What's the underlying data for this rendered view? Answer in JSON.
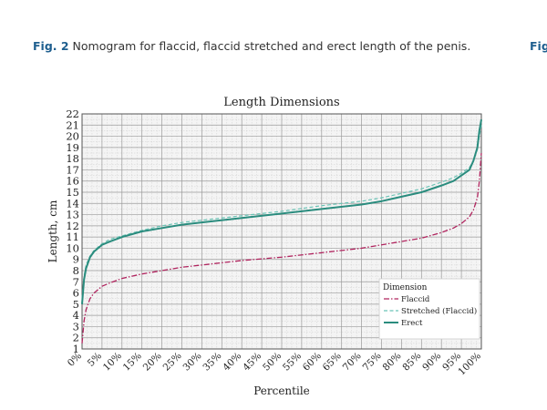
{
  "figure": {
    "label": "Fig. 2",
    "caption": " Nomogram for flaccid, flaccid stretched and erect length of the penis.",
    "next_label": "Fig"
  },
  "colors": {
    "background": "#ffffff",
    "plot_background": "#f4f4f4",
    "grid_major": "#9a9a9a",
    "grid_minor": "#d0d0d0",
    "flaccid": "#b0245e",
    "stretched": "#6bc4b6",
    "erect": "#2a8c7e",
    "caption_label": "#1f5f8f"
  },
  "chart_data": {
    "type": "line",
    "title": "Length Dimensions",
    "xlabel": "Percentile",
    "ylabel": "Length, cm",
    "xlim": [
      0,
      100
    ],
    "ylim": [
      1,
      22
    ],
    "grid": true,
    "x_ticks": [
      "0%",
      "5%",
      "10%",
      "15%",
      "20%",
      "25%",
      "30%",
      "35%",
      "40%",
      "45%",
      "50%",
      "55%",
      "60%",
      "65%",
      "70%",
      "75%",
      "80%",
      "85%",
      "90%",
      "95%",
      "100%"
    ],
    "y_ticks": [
      "1",
      "2",
      "3",
      "4",
      "5",
      "6",
      "7",
      "8",
      "9",
      "10",
      "11",
      "12",
      "13",
      "14",
      "15",
      "16",
      "17",
      "18",
      "19",
      "20",
      "21",
      "22"
    ],
    "legend": {
      "title": "Dimension",
      "position": "bottom-right"
    },
    "x": [
      0,
      0.5,
      1,
      2,
      3,
      5,
      7,
      10,
      15,
      20,
      25,
      30,
      40,
      50,
      60,
      70,
      75,
      80,
      85,
      90,
      93,
      95,
      97,
      98,
      99,
      99.5,
      100
    ],
    "series": [
      {
        "name": "Flaccid",
        "style": "dashdot",
        "values": [
          1.5,
          3.5,
          4.5,
          5.5,
          6.0,
          6.6,
          6.9,
          7.3,
          7.7,
          8.0,
          8.3,
          8.5,
          8.9,
          9.2,
          9.6,
          10.0,
          10.3,
          10.6,
          10.9,
          11.4,
          11.8,
          12.2,
          12.8,
          13.4,
          14.5,
          16.0,
          18.5
        ]
      },
      {
        "name": "Stretched (Flaccid)",
        "style": "dashed",
        "values": [
          5.5,
          7.5,
          8.5,
          9.3,
          9.8,
          10.4,
          10.8,
          11.1,
          11.6,
          12.0,
          12.3,
          12.5,
          12.9,
          13.3,
          13.8,
          14.2,
          14.5,
          14.9,
          15.3,
          15.9,
          16.3,
          16.7,
          17.2,
          17.8,
          18.8,
          20.0,
          21.0
        ]
      },
      {
        "name": "Erect",
        "style": "solid",
        "values": [
          5.0,
          7.2,
          8.2,
          9.2,
          9.7,
          10.3,
          10.6,
          11.0,
          11.5,
          11.8,
          12.1,
          12.3,
          12.7,
          13.1,
          13.5,
          13.9,
          14.2,
          14.6,
          15.0,
          15.6,
          16.0,
          16.5,
          17.0,
          17.8,
          19.0,
          20.5,
          21.5
        ]
      }
    ]
  }
}
